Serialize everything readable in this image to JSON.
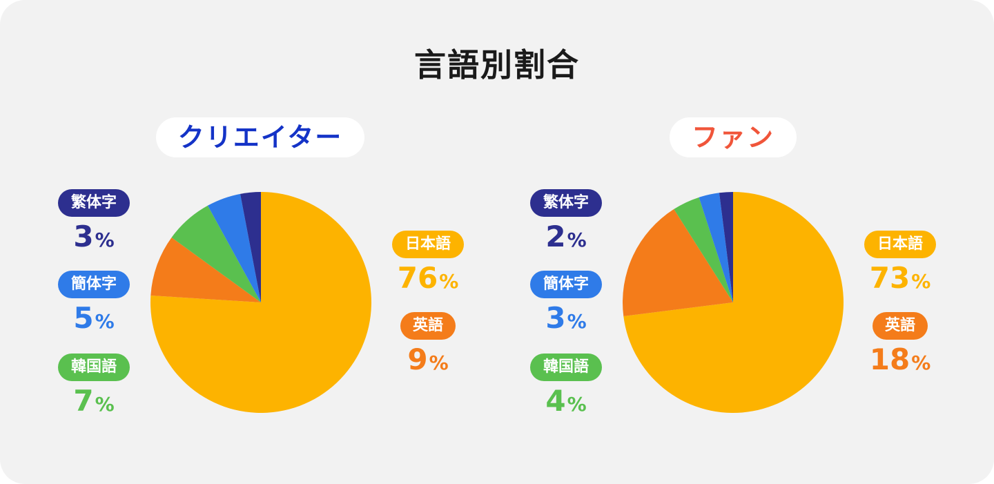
{
  "title": "言語別割合",
  "colors": {
    "japanese": "#fdb300",
    "english": "#f47c1a",
    "korean": "#5ac04f",
    "simplified": "#2f7be8",
    "traditional": "#2d2f8f"
  },
  "chart_data": [
    {
      "type": "pie",
      "title": "クリエイター",
      "title_color": "#1433c7",
      "slices": [
        {
          "label": "日本語",
          "value": 76,
          "display": "76",
          "unit": "%",
          "color": "#fdb300"
        },
        {
          "label": "英語",
          "value": 9,
          "display": "9",
          "unit": "%",
          "color": "#f47c1a"
        },
        {
          "label": "韓国語",
          "value": 7,
          "display": "7",
          "unit": "%",
          "color": "#5ac04f"
        },
        {
          "label": "簡体字",
          "value": 5,
          "display": "5",
          "unit": "%",
          "color": "#2f7be8"
        },
        {
          "label": "繁体字",
          "value": 3,
          "display": "3",
          "unit": "%",
          "color": "#2d2f8f"
        }
      ]
    },
    {
      "type": "pie",
      "title": "ファン",
      "title_color": "#f0553a",
      "slices": [
        {
          "label": "日本語",
          "value": 73,
          "display": "73",
          "unit": "%",
          "color": "#fdb300"
        },
        {
          "label": "英語",
          "value": 18,
          "display": "18",
          "unit": "%",
          "color": "#f47c1a"
        },
        {
          "label": "韓国語",
          "value": 4,
          "display": "4",
          "unit": "%",
          "color": "#5ac04f"
        },
        {
          "label": "簡体字",
          "value": 3,
          "display": "3",
          "unit": "%",
          "color": "#2f7be8"
        },
        {
          "label": "繁体字",
          "value": 2,
          "display": "2",
          "unit": "%",
          "color": "#2d2f8f"
        }
      ]
    }
  ]
}
